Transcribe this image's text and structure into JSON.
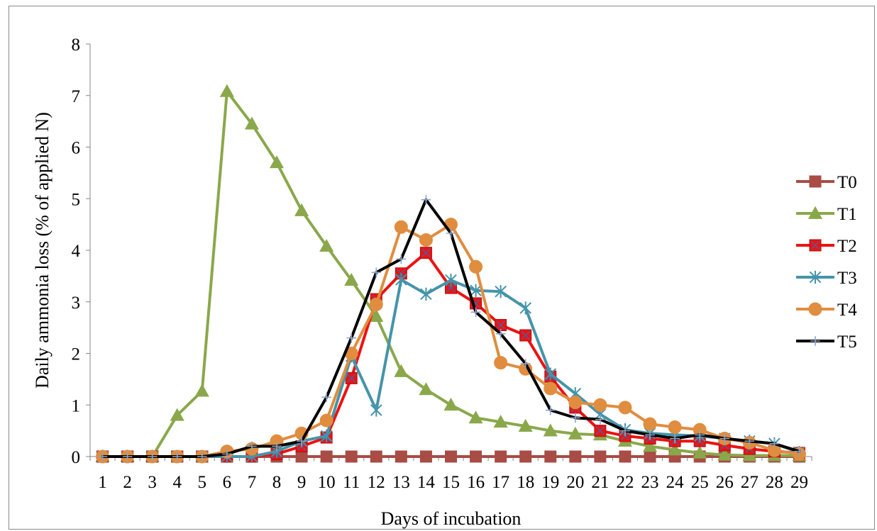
{
  "chart_data": {
    "type": "line",
    "title": "",
    "xlabel": "Days of incubation",
    "ylabel": "Daily ammonia loss (% of applied N)",
    "x": [
      1,
      2,
      3,
      4,
      5,
      6,
      7,
      8,
      9,
      10,
      11,
      12,
      13,
      14,
      15,
      16,
      17,
      18,
      19,
      20,
      21,
      22,
      23,
      24,
      25,
      26,
      27,
      28,
      29
    ],
    "x_tick_labels": [
      "1",
      "2",
      "3",
      "4",
      "5",
      "6",
      "7",
      "8",
      "9",
      "10",
      "11",
      "12",
      "13",
      "14",
      "15",
      "16",
      "17",
      "18",
      "19",
      "20",
      "21",
      "22",
      "23",
      "24",
      "25",
      "26",
      "27",
      "28",
      "29"
    ],
    "ylim": [
      0,
      8
    ],
    "y_ticks": [
      0,
      1,
      2,
      3,
      4,
      5,
      6,
      7,
      8
    ],
    "y_tick_labels": [
      "0",
      "1",
      "2",
      "3",
      "4",
      "5",
      "6",
      "7",
      "8"
    ],
    "grid": false,
    "legend_position": "right",
    "series": [
      {
        "name": "T0",
        "color": "#a84c45",
        "marker": "square",
        "values": [
          0,
          0,
          0,
          0,
          0,
          0,
          0,
          0,
          0,
          0,
          0,
          0,
          0,
          0,
          0,
          0,
          0,
          0,
          0,
          0,
          0,
          0,
          0,
          0,
          0,
          0,
          0,
          0,
          0
        ]
      },
      {
        "name": "T1",
        "color": "#8aa84b",
        "marker": "triangle",
        "values": [
          0,
          0,
          0,
          0.8,
          1.27,
          7.08,
          6.45,
          5.7,
          4.77,
          4.08,
          3.42,
          2.72,
          1.65,
          1.3,
          1.0,
          0.75,
          0.67,
          0.59,
          0.5,
          0.44,
          0.42,
          0.3,
          0.2,
          0.13,
          0.07,
          0.03,
          0.02,
          0.02,
          0.02
        ]
      },
      {
        "name": "T2",
        "color": "#ee1111",
        "marker": "square-x",
        "values": [
          0,
          0,
          0,
          0,
          0,
          0,
          0,
          0.05,
          0.2,
          0.37,
          1.52,
          3.05,
          3.55,
          3.95,
          3.27,
          2.97,
          2.55,
          2.35,
          1.55,
          0.95,
          0.5,
          0.4,
          0.35,
          0.3,
          0.3,
          0.22,
          0.15,
          0.1,
          0.07
        ]
      },
      {
        "name": "T3",
        "color": "#4594aa",
        "marker": "asterisk",
        "values": [
          0,
          0,
          0,
          0,
          0,
          0,
          0,
          0.1,
          0.3,
          0.4,
          1.95,
          0.9,
          3.43,
          3.15,
          3.42,
          3.22,
          3.2,
          2.88,
          1.6,
          1.22,
          0.82,
          0.52,
          0.45,
          0.42,
          0.4,
          0.35,
          0.3,
          0.25,
          0.08
        ]
      },
      {
        "name": "T4",
        "color": "#e08d3f",
        "marker": "circle",
        "values": [
          0,
          0,
          0,
          0,
          0,
          0.1,
          0.15,
          0.3,
          0.45,
          0.7,
          2.0,
          2.95,
          4.45,
          4.2,
          4.5,
          3.68,
          1.82,
          1.7,
          1.32,
          1.05,
          1.0,
          0.95,
          0.63,
          0.57,
          0.52,
          0.35,
          0.27,
          0.12,
          0.05
        ]
      },
      {
        "name": "T5",
        "color": "#000000",
        "marker": "plus",
        "values": [
          0,
          0,
          0,
          0,
          0,
          0.05,
          0.2,
          0.2,
          0.3,
          1.15,
          2.3,
          3.57,
          3.83,
          4.98,
          4.33,
          2.8,
          2.38,
          1.8,
          0.9,
          0.75,
          0.72,
          0.5,
          0.42,
          0.35,
          0.42,
          0.35,
          0.3,
          0.25,
          0.1
        ]
      }
    ]
  }
}
